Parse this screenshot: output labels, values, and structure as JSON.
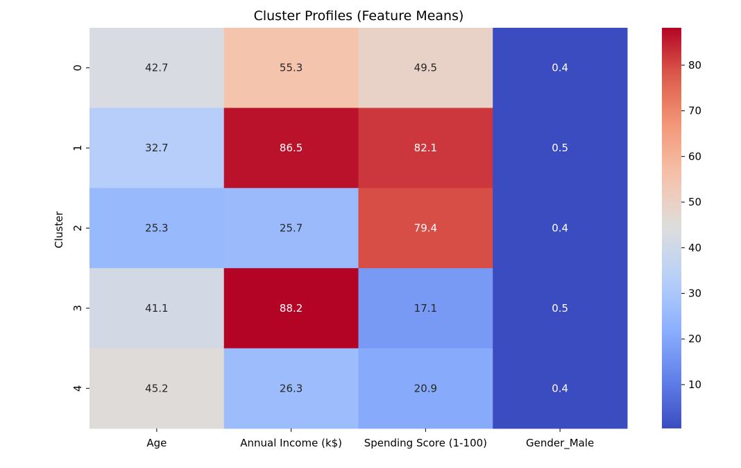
{
  "chart_data": {
    "type": "heatmap",
    "title": "Cluster Profiles (Feature Means)",
    "xlabel": "",
    "ylabel": "Cluster",
    "columns": [
      "Age",
      "Annual Income (k$)",
      "Spending Score (1-100)",
      "Gender_Male"
    ],
    "rows": [
      "0",
      "1",
      "2",
      "3",
      "4"
    ],
    "values": [
      [
        42.7,
        55.3,
        49.5,
        0.4
      ],
      [
        32.7,
        86.5,
        82.1,
        0.5
      ],
      [
        25.3,
        25.7,
        79.4,
        0.4
      ],
      [
        41.1,
        88.2,
        17.1,
        0.5
      ],
      [
        45.2,
        26.3,
        20.9,
        0.4
      ]
    ],
    "annotations": [
      [
        "42.7",
        "55.3",
        "49.5",
        "0.4"
      ],
      [
        "32.7",
        "86.5",
        "82.1",
        "0.5"
      ],
      [
        "25.3",
        "25.7",
        "79.4",
        "0.4"
      ],
      [
        "41.1",
        "88.2",
        "17.1",
        "0.5"
      ],
      [
        "45.2",
        "26.3",
        "20.9",
        "0.4"
      ]
    ],
    "colormap": "coolwarm",
    "vmin": 0.4,
    "vmax": 88.2,
    "colorbar": {
      "ticks": [
        10,
        20,
        30,
        40,
        50,
        60,
        70,
        80
      ],
      "tick_labels": [
        "10",
        "20",
        "30",
        "40",
        "50",
        "60",
        "70",
        "80"
      ]
    }
  }
}
